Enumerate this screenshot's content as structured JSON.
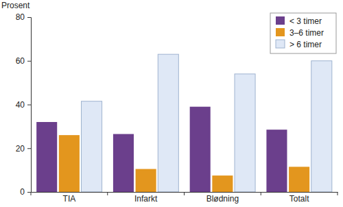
{
  "chart_data": {
    "type": "bar",
    "y_label": "Prosent",
    "categories": [
      "TIA",
      "Infarkt",
      "Blødning",
      "Totalt"
    ],
    "series": [
      {
        "name": "< 3 timer",
        "color": "#6b3f8c",
        "values": [
          32,
          26.5,
          39,
          28.5
        ]
      },
      {
        "name": "3–6 timer",
        "color": "#e3961e",
        "values": [
          26,
          10.5,
          7.5,
          11.5
        ]
      },
      {
        "name": "> 6 timer",
        "color": "#dfe8f6",
        "values": [
          41.5,
          63,
          54,
          60
        ]
      }
    ],
    "ylim": [
      0,
      80
    ],
    "yticks": [
      0,
      20,
      40,
      60,
      80
    ],
    "grid": false,
    "legend": "upper right"
  }
}
